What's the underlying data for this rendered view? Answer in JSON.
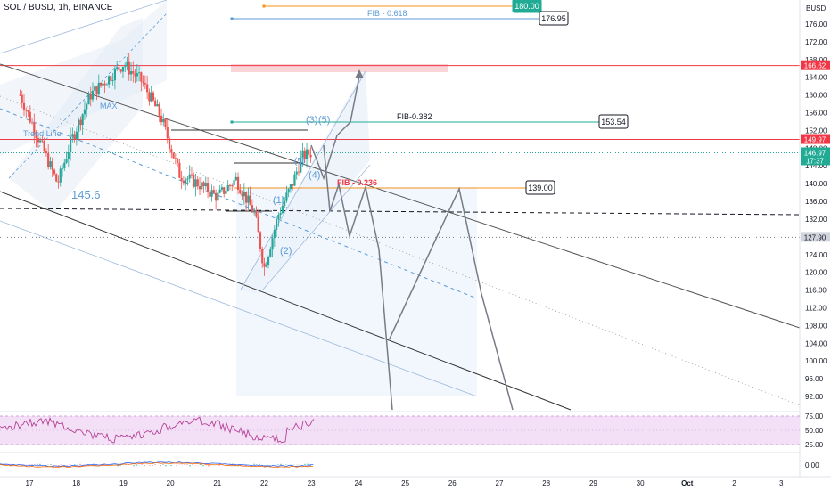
{
  "header": {
    "symbol_label": "SOL / BUSD, 1h, BINANCE"
  },
  "price_axis": {
    "currency": "BUSD",
    "ticks": [
      "176.00",
      "172.00",
      "168.00",
      "164.00",
      "160.00",
      "156.00",
      "152.00",
      "148.00",
      "144.00",
      "140.00",
      "136.00",
      "132.00",
      "128.00",
      "124.00",
      "120.00",
      "116.00",
      "112.00",
      "108.00",
      "104.00",
      "100.00",
      "96.00",
      "92.00"
    ],
    "badges": [
      {
        "text": "166.62",
        "color": "#f23645"
      },
      {
        "text": "149.97",
        "color": "#f23645"
      },
      {
        "text": "146.97",
        "sub": "17:37",
        "color": "#22ab94"
      },
      {
        "text": "127.90",
        "color": "#d1d4dc"
      }
    ]
  },
  "rsi_axis": {
    "ticks": [
      "75.00",
      "50.00",
      "25.00"
    ]
  },
  "macd_axis": {
    "ticks": [
      "0.00"
    ]
  },
  "time_axis": {
    "ticks": [
      "17",
      "18",
      "19",
      "20",
      "21",
      "22",
      "23",
      "24",
      "25",
      "26",
      "27",
      "28",
      "29",
      "30",
      "Oct",
      "2",
      "3"
    ]
  },
  "annotations": {
    "fib_0618": "FIB - 0.618",
    "fib_0382": "FIB-0.382",
    "fib_0236": "FIB - 0.236",
    "target_180": "180.00",
    "target_176": "176.95",
    "target_153": "153.54",
    "target_139": "139.00",
    "max_label": "MAX",
    "trend_label": "Trend Line",
    "price_note": "145.6",
    "w1": "(1)",
    "w2": "(2)",
    "w3": "(3)",
    "w4": "(4)",
    "w5": "(5)",
    "w5b": "(5)"
  },
  "chart_data": {
    "type": "candlestick",
    "title": "SOL / BUSD, 1h, BINANCE",
    "ylim": [
      88,
      180
    ],
    "y_axis_ticks": [
      176,
      172,
      168,
      164,
      160,
      156,
      152,
      148,
      144,
      140,
      136,
      132,
      128,
      124,
      120,
      116,
      112,
      108,
      104,
      100,
      96,
      92
    ],
    "x_labels": [
      "17",
      "18",
      "19",
      "20",
      "21",
      "22",
      "23",
      "24",
      "25",
      "26",
      "27",
      "28",
      "29",
      "30",
      "Oct",
      "2",
      "3"
    ],
    "horizontal_levels": [
      {
        "label": "166.62",
        "value": 166.62,
        "color": "#f23645"
      },
      {
        "label": "149.97",
        "value": 149.97,
        "color": "#f23645"
      },
      {
        "label": "146.97",
        "value": 146.97,
        "color": "#22ab94"
      },
      {
        "label": "127.90",
        "value": 127.9,
        "color": "#787b86"
      },
      {
        "label": "dashed",
        "value": 133.5,
        "color": "#131722"
      }
    ],
    "fib_levels": [
      {
        "name": "FIB - 0.618",
        "target": 176.95
      },
      {
        "name": "FIB-0.382",
        "target": 153.54
      },
      {
        "name": "FIB - 0.236",
        "target": 139.0
      }
    ],
    "targets": [
      180.0,
      176.95,
      153.54,
      139.0
    ],
    "candles_close_trend": [
      {
        "day": 16.8,
        "price": 160
      },
      {
        "day": 17.2,
        "price": 150
      },
      {
        "day": 17.6,
        "price": 140
      },
      {
        "day": 17.9,
        "price": 150
      },
      {
        "day": 18.3,
        "price": 160
      },
      {
        "day": 18.7,
        "price": 164
      },
      {
        "day": 19.0,
        "price": 167
      },
      {
        "day": 19.4,
        "price": 163
      },
      {
        "day": 19.8,
        "price": 155
      },
      {
        "day": 20.2,
        "price": 142
      },
      {
        "day": 20.6,
        "price": 140
      },
      {
        "day": 21.0,
        "price": 137
      },
      {
        "day": 21.4,
        "price": 141
      },
      {
        "day": 21.8,
        "price": 133
      },
      {
        "day": 22.0,
        "price": 121
      },
      {
        "day": 22.3,
        "price": 133
      },
      {
        "day": 22.6,
        "price": 140
      },
      {
        "day": 22.8,
        "price": 146
      },
      {
        "day": 23.0,
        "price": 147
      }
    ]
  },
  "colors": {
    "up": "#26a69a",
    "down": "#ef5350",
    "channel": "#131722",
    "blue_line": "#5b9bd5",
    "red_line": "#f23645",
    "orange": "#f7931a",
    "rsi_band": "#f3e0f7",
    "rsi_line": "#b54194"
  }
}
